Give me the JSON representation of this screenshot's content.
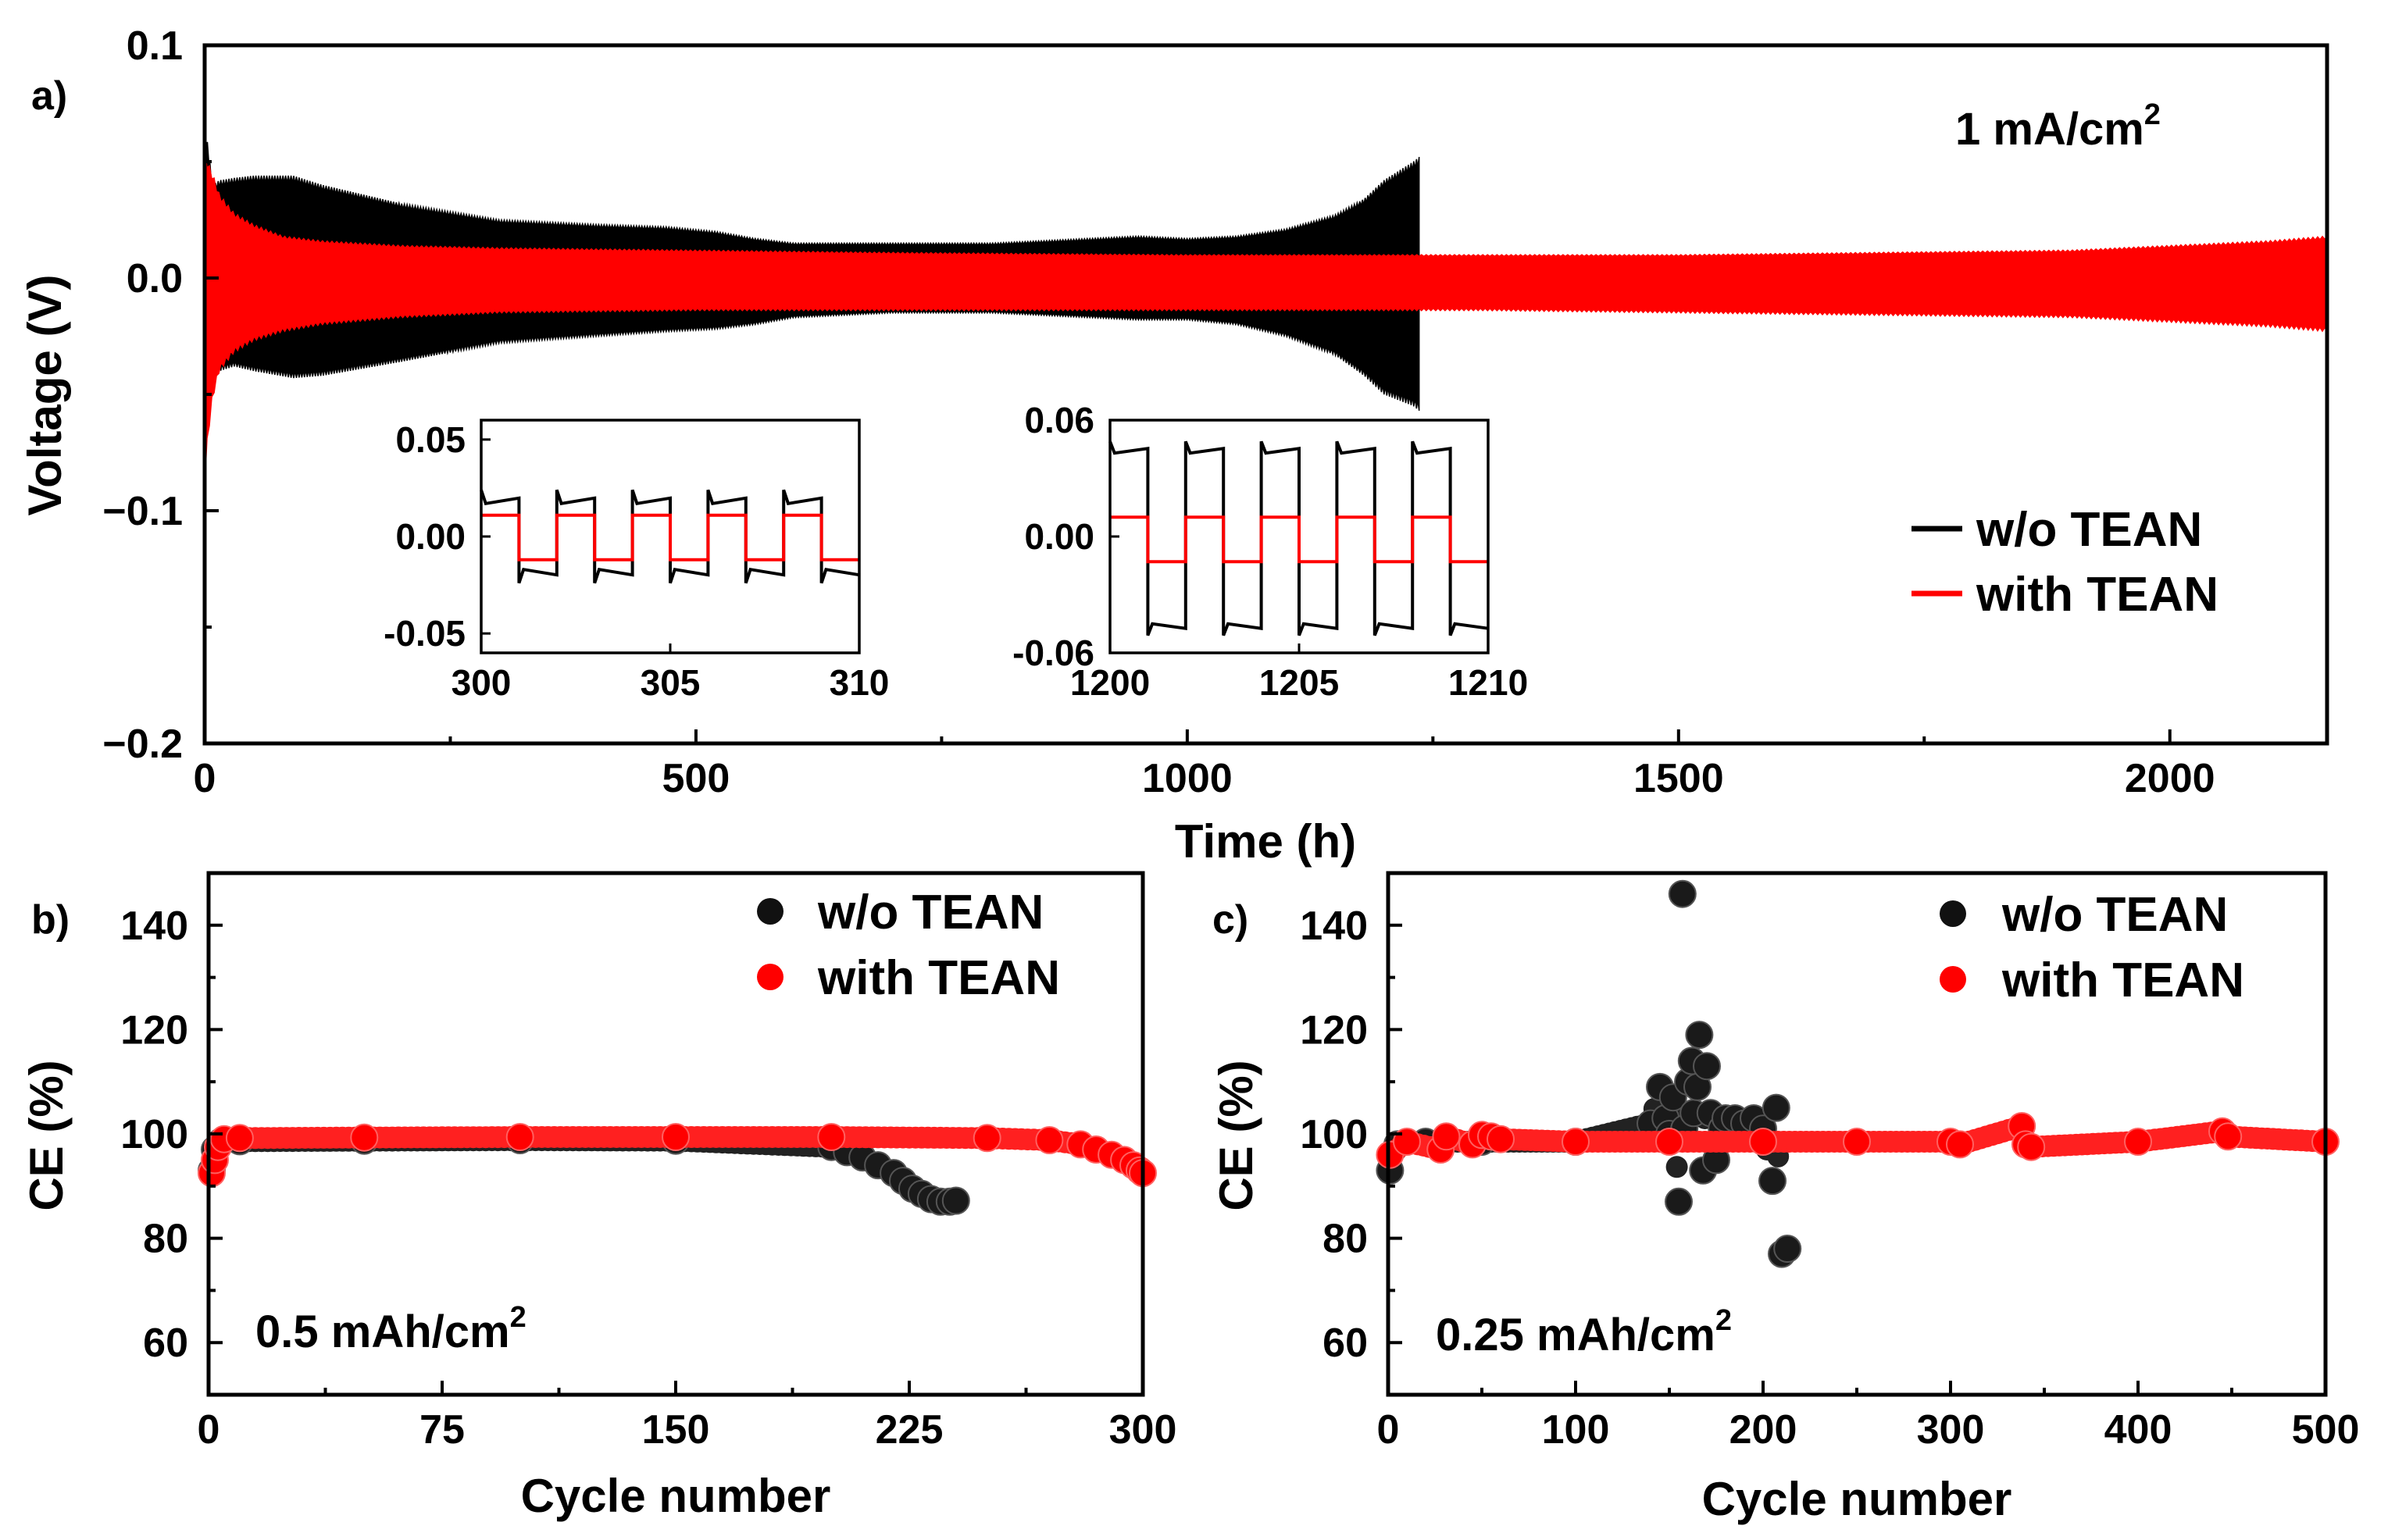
{
  "colors": {
    "without": "#000000",
    "with": "#ff0000"
  },
  "legend": {
    "without": "w/o TEAN",
    "with": "with TEAN"
  },
  "chart_data": [
    {
      "id": "a",
      "panel_label": "a)",
      "type": "line",
      "title": "",
      "xlabel": "Time (h)",
      "ylabel": "Voltage (V)",
      "xlim": [
        0,
        2160
      ],
      "ylim": [
        -0.2,
        0.1
      ],
      "xticks": [
        0,
        500,
        1000,
        1500,
        2000
      ],
      "yticks": [
        0.1,
        0.0,
        -0.1,
        -0.2
      ],
      "xtick_labels": [
        "0",
        "500",
        "1000",
        "1500",
        "2000"
      ],
      "ytick_labels": [
        "0.1",
        "0.0",
        "−0.1",
        "−0.2"
      ],
      "annotation": "1 mA/cm",
      "annotation_sup": "2",
      "legend_position": "right",
      "series": [
        {
          "name": "w/o TEAN",
          "envelope": {
            "t": [
              0,
              3,
              8,
              15,
              30,
              50,
              90,
              120,
              200,
              300,
              400,
              470,
              520,
              560,
              600,
              700,
              800,
              900,
              950,
              1000,
              1050,
              1100,
              1150,
              1180,
              1200,
              1230,
              1236
            ],
            "upper": [
              0.063,
              0.058,
              0.04,
              0.042,
              0.043,
              0.044,
              0.044,
              0.04,
              0.032,
              0.025,
              0.023,
              0.022,
              0.02,
              0.017,
              0.015,
              0.015,
              0.015,
              0.017,
              0.018,
              0.017,
              0.018,
              0.021,
              0.027,
              0.034,
              0.042,
              0.05,
              0.052
            ],
            "lower": [
              -0.075,
              -0.06,
              -0.042,
              -0.04,
              -0.038,
              -0.04,
              -0.043,
              -0.042,
              -0.036,
              -0.028,
              -0.025,
              -0.023,
              -0.022,
              -0.02,
              -0.017,
              -0.015,
              -0.015,
              -0.017,
              -0.018,
              -0.018,
              -0.02,
              -0.025,
              -0.033,
              -0.042,
              -0.05,
              -0.055,
              -0.057
            ]
          }
        },
        {
          "name": "with TEAN",
          "envelope": {
            "t": [
              0,
              3,
              8,
              15,
              30,
              50,
              80,
              120,
              200,
              300,
              500,
              700,
              1000,
              1300,
              1500,
              1700,
              1900,
              2000,
              2100,
              2160
            ],
            "upper": [
              0.055,
              0.05,
              0.045,
              0.036,
              0.028,
              0.023,
              0.018,
              0.016,
              0.014,
              0.013,
              0.012,
              0.011,
              0.01,
              0.01,
              0.01,
              0.011,
              0.012,
              0.014,
              0.016,
              0.018
            ],
            "lower": [
              -0.09,
              -0.07,
              -0.052,
              -0.04,
              -0.032,
              -0.027,
              -0.023,
              -0.02,
              -0.017,
              -0.015,
              -0.014,
              -0.014,
              -0.014,
              -0.014,
              -0.015,
              -0.016,
              -0.017,
              -0.019,
              -0.021,
              -0.023
            ]
          }
        }
      ]
    },
    {
      "id": "a-inset-1",
      "type": "line",
      "xlim": [
        300,
        310
      ],
      "ylim": [
        -0.06,
        0.06
      ],
      "xticks": [
        300,
        305,
        310
      ],
      "yticks": [
        0.05,
        0.0,
        -0.05
      ],
      "xtick_labels": [
        "300",
        "305",
        "310"
      ],
      "ytick_labels": [
        "0.05",
        "0.00",
        "-0.05"
      ],
      "period_h": 2,
      "series": [
        {
          "name": "w/o TEAN",
          "plateau_high": 0.017,
          "plateau_low": -0.017,
          "spike": 0.007
        },
        {
          "name": "with TEAN",
          "plateau_high": 0.011,
          "plateau_low": -0.012,
          "spike": 0.0
        }
      ]
    },
    {
      "id": "a-inset-2",
      "type": "line",
      "xlim": [
        1200,
        1210
      ],
      "ylim": [
        -0.06,
        0.06
      ],
      "xticks": [
        1200,
        1205,
        1210
      ],
      "yticks": [
        0.06,
        0.0,
        -0.06
      ],
      "xtick_labels": [
        "1200",
        "1205",
        "1210"
      ],
      "ytick_labels": [
        "0.06",
        "0.00",
        "-0.06"
      ],
      "period_h": 2,
      "series": [
        {
          "name": "w/o TEAN",
          "plateau_high": 0.043,
          "plateau_low": -0.045,
          "spike": 0.006
        },
        {
          "name": "with TEAN",
          "plateau_high": 0.01,
          "plateau_low": -0.013,
          "spike": 0.0
        }
      ]
    },
    {
      "id": "b",
      "panel_label": "b)",
      "type": "scatter",
      "xlabel": "Cycle number",
      "ylabel": "CE (%)",
      "xlim": [
        0,
        300
      ],
      "ylim": [
        50,
        150
      ],
      "xticks": [
        0,
        75,
        150,
        225,
        300
      ],
      "yticks": [
        60,
        80,
        100,
        120,
        140
      ],
      "xtick_labels": [
        "0",
        "75",
        "150",
        "225",
        "300"
      ],
      "ytick_labels": [
        "60",
        "80",
        "100",
        "120",
        "140"
      ],
      "annotation": "0.5 mAh/cm",
      "annotation_sup": "2",
      "legend_position": "top-right",
      "series": [
        {
          "name": "w/o TEAN",
          "x": [
            1,
            2,
            4,
            10,
            50,
            100,
            150,
            200,
            205,
            210,
            215,
            220,
            223,
            226,
            229,
            232,
            235,
            238,
            240
          ],
          "y": [
            93,
            97,
            98.5,
            98.6,
            98.7,
            98.8,
            98.7,
            97.5,
            96.5,
            95.5,
            94,
            92.5,
            91,
            89.5,
            88.5,
            87.5,
            87,
            87,
            87.2
          ]
        },
        {
          "name": "with TEAN",
          "x": [
            1,
            2,
            3,
            5,
            10,
            50,
            100,
            150,
            200,
            250,
            270,
            280,
            285,
            290,
            294,
            297,
            299,
            300
          ],
          "y": [
            92.5,
            95,
            97.5,
            99,
            99.2,
            99.3,
            99.4,
            99.4,
            99.4,
            99.2,
            98.8,
            98,
            97,
            96,
            95,
            94,
            93,
            92.5
          ]
        }
      ]
    },
    {
      "id": "c",
      "panel_label": "c)",
      "type": "scatter",
      "xlabel": "Cycle number",
      "ylabel": "CE (%)",
      "xlim": [
        0,
        500
      ],
      "ylim": [
        50,
        150
      ],
      "xticks": [
        0,
        100,
        200,
        300,
        400,
        500
      ],
      "yticks": [
        60,
        80,
        100,
        120,
        140
      ],
      "xtick_labels": [
        "0",
        "100",
        "200",
        "300",
        "400",
        "500"
      ],
      "ytick_labels": [
        "60",
        "80",
        "100",
        "120",
        "140"
      ],
      "annotation": "0.25 mAh/cm",
      "annotation_sup": "2",
      "legend_position": "top-right",
      "series": [
        {
          "name": "w/o TEAN",
          "x": [
            1,
            5,
            20,
            50,
            100,
            140,
            145,
            148,
            150,
            152,
            155,
            157,
            158,
            160,
            162,
            163,
            165,
            166,
            168,
            170,
            172,
            175,
            178,
            180,
            185,
            190,
            195,
            200,
            205,
            207,
            210,
            213
          ],
          "y": [
            93,
            98,
            98.5,
            98.5,
            98.5,
            102,
            109,
            103,
            100,
            107,
            87,
            146,
            101,
            110,
            114,
            104,
            109,
            119,
            93,
            113,
            104,
            95,
            101,
            103,
            103,
            102,
            103,
            101,
            91,
            105,
            77,
            78
          ]
        },
        {
          "name": "with TEAN",
          "x": [
            1,
            10,
            28,
            31,
            45,
            50,
            55,
            60,
            100,
            150,
            200,
            250,
            300,
            305,
            338,
            340,
            343,
            400,
            445,
            448,
            500
          ],
          "y": [
            96,
            98.5,
            97,
            99.5,
            98,
            99.8,
            99.5,
            99,
            98.5,
            98.5,
            98.5,
            98.5,
            98.5,
            98,
            101.5,
            98,
            97.5,
            98.5,
            100.5,
            99.5,
            98.5
          ]
        }
      ]
    }
  ]
}
